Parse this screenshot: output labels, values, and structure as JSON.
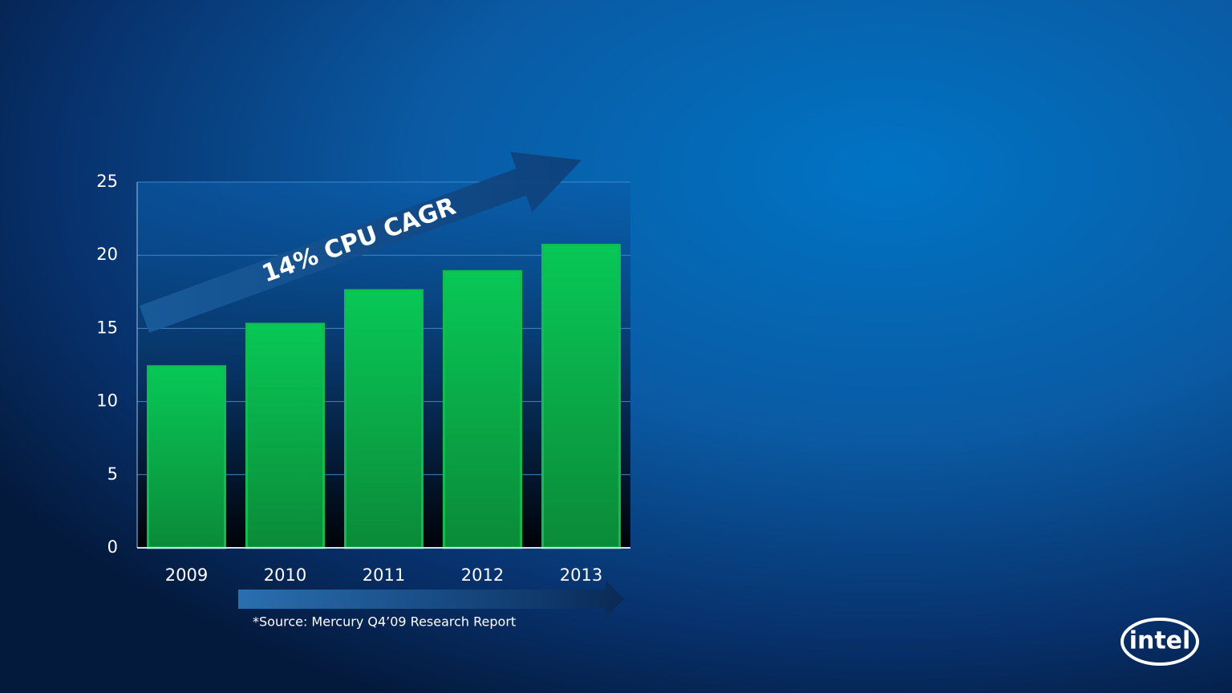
{
  "chart_data": {
    "type": "bar",
    "categories": [
      "2009",
      "2010",
      "2011",
      "2012",
      "2013"
    ],
    "values": [
      12.4,
      15.3,
      17.6,
      18.9,
      20.7
    ],
    "color": "#0fbf4e",
    "ylim": [
      0,
      25
    ],
    "yticks": [
      0,
      5,
      10,
      15,
      20,
      25
    ],
    "grid": true,
    "annotation": "14% CPU CAGR",
    "source": "*Source:  Mercury  Q4’09 Research  Report"
  },
  "logo": "intel"
}
